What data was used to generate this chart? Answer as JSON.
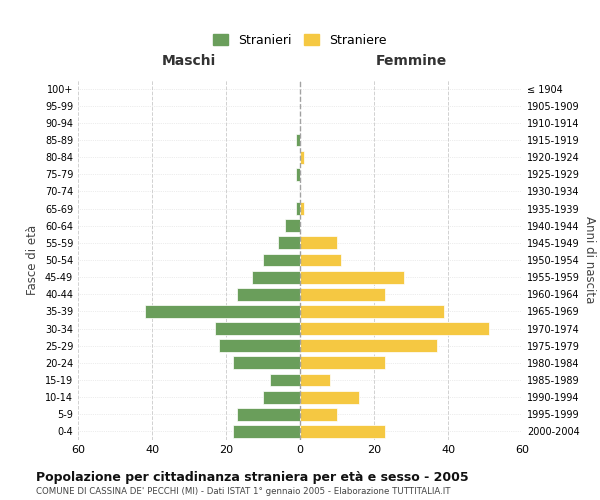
{
  "age_groups": [
    "0-4",
    "5-9",
    "10-14",
    "15-19",
    "20-24",
    "25-29",
    "30-34",
    "35-39",
    "40-44",
    "45-49",
    "50-54",
    "55-59",
    "60-64",
    "65-69",
    "70-74",
    "75-79",
    "80-84",
    "85-89",
    "90-94",
    "95-99",
    "100+"
  ],
  "birth_years": [
    "2000-2004",
    "1995-1999",
    "1990-1994",
    "1985-1989",
    "1980-1984",
    "1975-1979",
    "1970-1974",
    "1965-1969",
    "1960-1964",
    "1955-1959",
    "1950-1954",
    "1945-1949",
    "1940-1944",
    "1935-1939",
    "1930-1934",
    "1925-1929",
    "1920-1924",
    "1915-1919",
    "1910-1914",
    "1905-1909",
    "≤ 1904"
  ],
  "males": [
    18,
    17,
    10,
    8,
    18,
    22,
    23,
    42,
    17,
    13,
    10,
    6,
    4,
    1,
    0,
    1,
    0,
    1,
    0,
    0,
    0
  ],
  "females": [
    23,
    10,
    16,
    8,
    23,
    37,
    51,
    39,
    23,
    28,
    11,
    10,
    0,
    1,
    0,
    0,
    1,
    0,
    0,
    0,
    0
  ],
  "male_color": "#6a9e5b",
  "female_color": "#f5c842",
  "title": "Popolazione per cittadinanza straniera per età e sesso - 2005",
  "subtitle": "COMUNE DI CASSINA DE' PECCHI (MI) - Dati ISTAT 1° gennaio 2005 - Elaborazione TUTTITALIA.IT",
  "legend_male": "Stranieri",
  "legend_female": "Straniere",
  "xlabel_left": "Maschi",
  "xlabel_right": "Femmine",
  "ylabel_left": "Fasce di età",
  "ylabel_right": "Anni di nascita",
  "xlim": 60,
  "background_color": "#ffffff",
  "grid_color": "#cccccc",
  "bar_edge_color": "#ffffff"
}
